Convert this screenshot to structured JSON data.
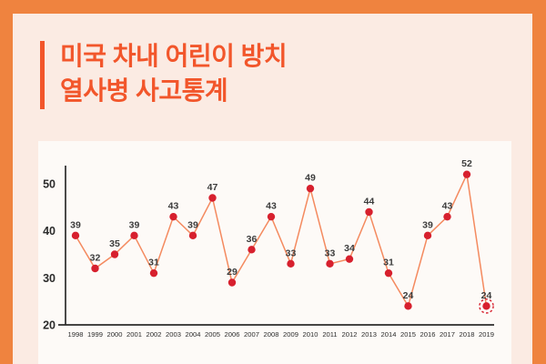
{
  "title": {
    "line1": "미국 차내 어린이 방치",
    "line2": "열사병 사고통계"
  },
  "colors": {
    "frame": "#ef833f",
    "background": "#fbebe3",
    "card": "#fdfaf7",
    "title": "#f2562b",
    "line": "#f48a5f",
    "marker": "#d7202e",
    "value_label": "#3c3c3c",
    "axis": "#2b2b2b"
  },
  "chart_data": {
    "type": "line",
    "title": "미국 차내 어린이 방치 열사병 사고통계",
    "categories": [
      "1998",
      "1999",
      "2000",
      "2001",
      "2002",
      "2003",
      "2004",
      "2005",
      "2006",
      "2007",
      "2008",
      "2009",
      "2010",
      "2011",
      "2012",
      "2013",
      "2014",
      "2015",
      "2016",
      "2017",
      "2018",
      "2019"
    ],
    "values": [
      39,
      32,
      35,
      39,
      31,
      43,
      39,
      47,
      29,
      36,
      43,
      33,
      49,
      33,
      34,
      44,
      31,
      24,
      39,
      43,
      52,
      24
    ],
    "xlabel": "",
    "ylabel": "",
    "ylim": [
      20,
      55
    ],
    "yticks": [
      20,
      30,
      40,
      50
    ],
    "grid": false,
    "legend_position": "none",
    "data_labels": true,
    "highlight_last_point": true
  }
}
